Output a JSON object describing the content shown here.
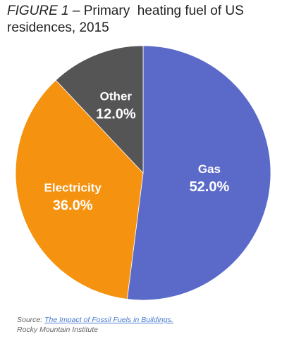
{
  "figure": {
    "prefix": "FIGURE 1",
    "title": " – Primary  heating fuel of US residences, 2015"
  },
  "chart_data": {
    "type": "pie",
    "title": "Primary heating fuel of US residences, 2015",
    "start": "top",
    "direction": "clockwise",
    "slices": [
      {
        "name": "Gas",
        "value": 52.0,
        "label": "52.0%",
        "color": "#5b6ac9"
      },
      {
        "name": "Electricity",
        "value": 36.0,
        "label": "36.0%",
        "color": "#f5920f"
      },
      {
        "name": "Other",
        "value": 12.0,
        "label": "12.0%",
        "color": "#555555"
      }
    ]
  },
  "source": {
    "prefix": "Source: ",
    "link_text": "The Impact of Fossil Fuels in Buildings.",
    "org": "Rocky Mountain Institute"
  }
}
